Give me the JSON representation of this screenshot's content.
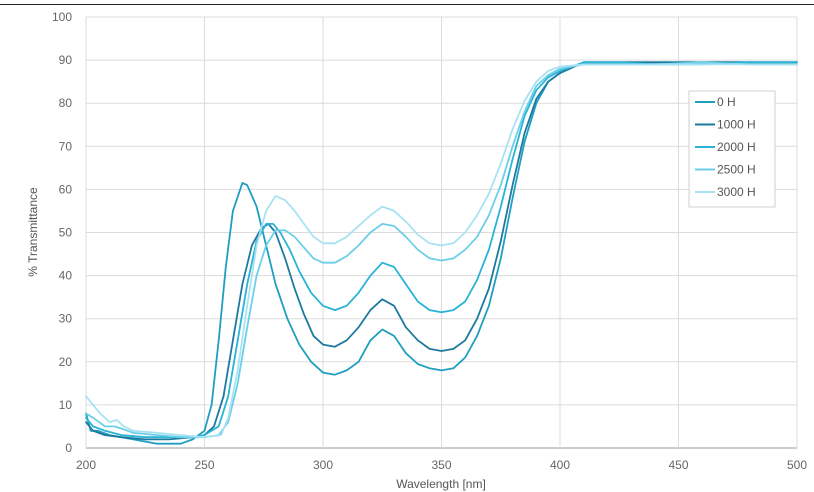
{
  "chart_data": {
    "type": "line",
    "title": "",
    "xlabel": "Wavelength [nm]",
    "ylabel": "% Transmittance",
    "xlim": [
      200,
      500
    ],
    "ylim": [
      0,
      100
    ],
    "x_ticks": [
      200,
      250,
      300,
      350,
      400,
      450,
      500
    ],
    "y_ticks": [
      0,
      10,
      20,
      30,
      40,
      50,
      60,
      70,
      80,
      90,
      100
    ],
    "grid": true,
    "legend_position": "right",
    "series": [
      {
        "name": "0 H",
        "color": "#1f9ec0",
        "points": [
          [
            200,
            8
          ],
          [
            202,
            4
          ],
          [
            205,
            4
          ],
          [
            210,
            3
          ],
          [
            220,
            2
          ],
          [
            230,
            1
          ],
          [
            240,
            1
          ],
          [
            245,
            2
          ],
          [
            250,
            4
          ],
          [
            253,
            10
          ],
          [
            256,
            25
          ],
          [
            259,
            42
          ],
          [
            262,
            55
          ],
          [
            266,
            61.5
          ],
          [
            268,
            61
          ],
          [
            272,
            56
          ],
          [
            276,
            47
          ],
          [
            280,
            38
          ],
          [
            285,
            30
          ],
          [
            290,
            24
          ],
          [
            295,
            20
          ],
          [
            300,
            17.5
          ],
          [
            305,
            17
          ],
          [
            310,
            18
          ],
          [
            315,
            20
          ],
          [
            320,
            25
          ],
          [
            325,
            27.5
          ],
          [
            330,
            26
          ],
          [
            335,
            22
          ],
          [
            340,
            19.5
          ],
          [
            345,
            18.5
          ],
          [
            350,
            18
          ],
          [
            355,
            18.5
          ],
          [
            360,
            21
          ],
          [
            365,
            26
          ],
          [
            370,
            33
          ],
          [
            375,
            44
          ],
          [
            380,
            58
          ],
          [
            385,
            71
          ],
          [
            390,
            80
          ],
          [
            395,
            85
          ],
          [
            400,
            87
          ],
          [
            410,
            89.5
          ],
          [
            425,
            89.5
          ],
          [
            440,
            89.5
          ],
          [
            460,
            89.5
          ],
          [
            480,
            89.5
          ],
          [
            500,
            89.5
          ]
        ]
      },
      {
        "name": "1000 H",
        "color": "#1d7a9f",
        "points": [
          [
            200,
            6
          ],
          [
            203,
            4
          ],
          [
            208,
            3
          ],
          [
            215,
            2.5
          ],
          [
            225,
            2
          ],
          [
            235,
            2
          ],
          [
            245,
            2.5
          ],
          [
            250,
            3
          ],
          [
            254,
            5
          ],
          [
            258,
            12
          ],
          [
            262,
            25
          ],
          [
            266,
            38
          ],
          [
            270,
            47
          ],
          [
            274,
            51
          ],
          [
            277,
            52
          ],
          [
            280,
            50
          ],
          [
            284,
            44
          ],
          [
            288,
            37
          ],
          [
            292,
            31
          ],
          [
            296,
            26
          ],
          [
            300,
            24
          ],
          [
            305,
            23.5
          ],
          [
            310,
            25
          ],
          [
            315,
            28
          ],
          [
            320,
            32
          ],
          [
            325,
            34.5
          ],
          [
            330,
            33
          ],
          [
            335,
            28
          ],
          [
            340,
            25
          ],
          [
            345,
            23
          ],
          [
            350,
            22.5
          ],
          [
            355,
            23
          ],
          [
            360,
            25
          ],
          [
            365,
            30
          ],
          [
            370,
            37
          ],
          [
            375,
            48
          ],
          [
            380,
            61
          ],
          [
            385,
            73
          ],
          [
            390,
            81
          ],
          [
            395,
            85
          ],
          [
            400,
            87
          ],
          [
            410,
            89.5
          ],
          [
            425,
            89.5
          ],
          [
            440,
            89.5
          ],
          [
            460,
            89.5
          ],
          [
            480,
            89.5
          ],
          [
            500,
            89.5
          ]
        ]
      },
      {
        "name": "2000 H",
        "color": "#29b3d6",
        "points": [
          [
            200,
            7
          ],
          [
            203,
            5
          ],
          [
            208,
            4
          ],
          [
            215,
            3
          ],
          [
            225,
            2.5
          ],
          [
            235,
            2.5
          ],
          [
            245,
            2.5
          ],
          [
            250,
            3
          ],
          [
            256,
            5
          ],
          [
            260,
            12
          ],
          [
            264,
            25
          ],
          [
            268,
            38
          ],
          [
            272,
            48
          ],
          [
            276,
            52
          ],
          [
            279,
            52
          ],
          [
            282,
            50
          ],
          [
            286,
            46
          ],
          [
            290,
            41
          ],
          [
            295,
            36
          ],
          [
            300,
            33
          ],
          [
            305,
            32
          ],
          [
            310,
            33
          ],
          [
            315,
            36
          ],
          [
            320,
            40
          ],
          [
            325,
            43
          ],
          [
            330,
            42
          ],
          [
            335,
            38
          ],
          [
            340,
            34
          ],
          [
            345,
            32
          ],
          [
            350,
            31.5
          ],
          [
            355,
            32
          ],
          [
            360,
            34
          ],
          [
            365,
            39
          ],
          [
            370,
            46
          ],
          [
            375,
            56
          ],
          [
            380,
            67
          ],
          [
            385,
            77
          ],
          [
            390,
            83
          ],
          [
            395,
            86
          ],
          [
            400,
            87.5
          ],
          [
            410,
            89.5
          ],
          [
            425,
            89.5
          ],
          [
            440,
            89
          ],
          [
            460,
            89
          ],
          [
            480,
            89.5
          ],
          [
            500,
            89.5
          ]
        ]
      },
      {
        "name": "2500 H",
        "color": "#6ccfe8",
        "points": [
          [
            200,
            8
          ],
          [
            203,
            7
          ],
          [
            208,
            5
          ],
          [
            212,
            5
          ],
          [
            215,
            4.5
          ],
          [
            220,
            3.5
          ],
          [
            230,
            3
          ],
          [
            240,
            2.5
          ],
          [
            250,
            2.5
          ],
          [
            256,
            3
          ],
          [
            260,
            6
          ],
          [
            264,
            15
          ],
          [
            268,
            28
          ],
          [
            272,
            40
          ],
          [
            276,
            47
          ],
          [
            280,
            50.5
          ],
          [
            284,
            50.5
          ],
          [
            288,
            49
          ],
          [
            292,
            46.5
          ],
          [
            296,
            44
          ],
          [
            300,
            43
          ],
          [
            305,
            43
          ],
          [
            310,
            44.5
          ],
          [
            315,
            47
          ],
          [
            320,
            50
          ],
          [
            325,
            52
          ],
          [
            330,
            51.5
          ],
          [
            335,
            49
          ],
          [
            340,
            46
          ],
          [
            345,
            44
          ],
          [
            350,
            43.5
          ],
          [
            355,
            44
          ],
          [
            360,
            46
          ],
          [
            365,
            49
          ],
          [
            370,
            54
          ],
          [
            375,
            61
          ],
          [
            380,
            70
          ],
          [
            385,
            78
          ],
          [
            390,
            84
          ],
          [
            395,
            86.5
          ],
          [
            400,
            88
          ],
          [
            410,
            89
          ],
          [
            425,
            89
          ],
          [
            440,
            89
          ],
          [
            460,
            89.5
          ],
          [
            480,
            89
          ],
          [
            500,
            89
          ]
        ]
      },
      {
        "name": "3000 H",
        "color": "#a8e2f2",
        "points": [
          [
            200,
            12
          ],
          [
            203,
            10
          ],
          [
            206,
            8
          ],
          [
            210,
            6
          ],
          [
            213,
            6.5
          ],
          [
            216,
            5
          ],
          [
            220,
            4
          ],
          [
            230,
            3.5
          ],
          [
            240,
            3
          ],
          [
            250,
            2.5
          ],
          [
            257,
            3
          ],
          [
            260,
            7
          ],
          [
            264,
            18
          ],
          [
            268,
            33
          ],
          [
            272,
            47
          ],
          [
            276,
            55
          ],
          [
            280,
            58.5
          ],
          [
            284,
            57.5
          ],
          [
            288,
            55
          ],
          [
            292,
            52
          ],
          [
            296,
            49
          ],
          [
            300,
            47.5
          ],
          [
            305,
            47.5
          ],
          [
            310,
            49
          ],
          [
            315,
            51.5
          ],
          [
            320,
            54
          ],
          [
            325,
            56
          ],
          [
            330,
            55
          ],
          [
            335,
            52.5
          ],
          [
            340,
            49.5
          ],
          [
            345,
            47.5
          ],
          [
            350,
            47
          ],
          [
            355,
            47.5
          ],
          [
            360,
            50
          ],
          [
            365,
            54
          ],
          [
            370,
            59
          ],
          [
            375,
            66
          ],
          [
            380,
            74
          ],
          [
            385,
            80.5
          ],
          [
            390,
            85
          ],
          [
            395,
            87.5
          ],
          [
            400,
            88.5
          ],
          [
            410,
            89
          ],
          [
            425,
            89
          ],
          [
            440,
            89
          ],
          [
            460,
            89
          ],
          [
            480,
            89
          ],
          [
            500,
            89
          ]
        ]
      }
    ]
  }
}
